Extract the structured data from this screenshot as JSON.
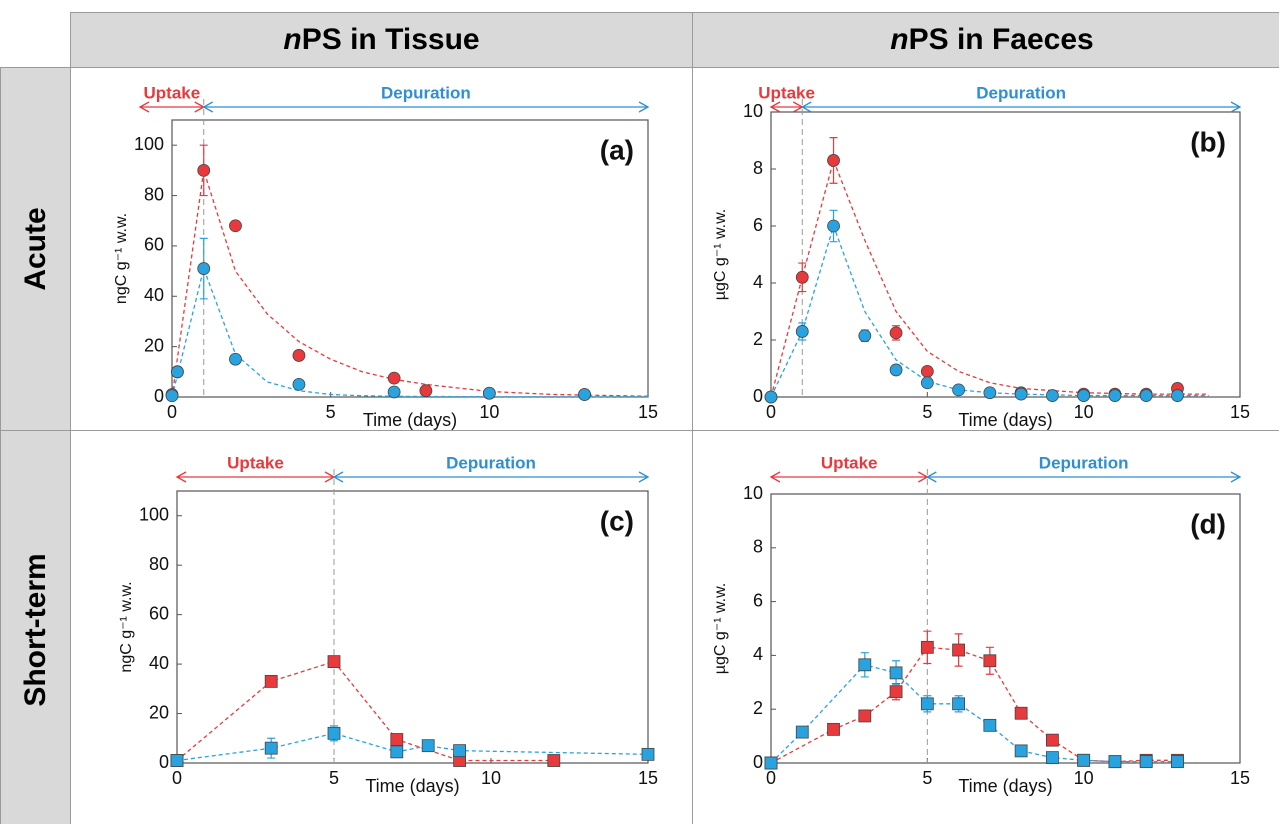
{
  "columns": [
    "nPS in Tissue",
    "nPS in Faeces"
  ],
  "rows": [
    "Acute",
    "Short-term"
  ],
  "chart_data": [
    {
      "type": "scatter",
      "label": "(a)",
      "xlabel": "Time (days)",
      "ylabel": "ngC g⁻¹ w.w.",
      "xlim": [
        0,
        15
      ],
      "ylim": [
        0,
        110
      ],
      "xticks": [
        0,
        5,
        10,
        15
      ],
      "yticks": [
        0,
        20,
        40,
        60,
        80,
        100
      ],
      "split": 1,
      "phase_labels": [
        "Uptake",
        "Depuration"
      ],
      "phase_colors": [
        "#e8393d",
        "#2f8fd0"
      ],
      "series": [
        {
          "color": "#e8393d",
          "marker": "none",
          "line": "dashed",
          "x": [
            0,
            1,
            2,
            3,
            4,
            5,
            6,
            7,
            8,
            10,
            12,
            15
          ],
          "values": [
            0,
            90,
            50,
            33,
            22,
            15,
            10,
            7,
            5,
            2.2,
            1,
            0.3
          ]
        },
        {
          "color": "#29a3df",
          "marker": "none",
          "line": "dashed",
          "x": [
            0,
            1,
            2,
            3,
            4,
            5,
            6,
            7,
            8,
            10,
            12,
            15
          ],
          "values": [
            0,
            51,
            17,
            6,
            2.5,
            1,
            0.5,
            0.3,
            0.2,
            0.1,
            0.1,
            0.1
          ]
        },
        {
          "color": "#e8393d",
          "marker": "circle",
          "line": "none",
          "x": [
            0,
            0.17,
            1,
            2,
            4,
            7,
            8,
            10,
            13
          ],
          "values": [
            1,
            10,
            90,
            68,
            16.5,
            7.5,
            2.5,
            1.5,
            1
          ],
          "errors": [
            null,
            null,
            10,
            null,
            null,
            null,
            null,
            null,
            null
          ]
        },
        {
          "color": "#29a3df",
          "marker": "circle",
          "line": "none",
          "x": [
            0,
            0.17,
            1,
            2,
            4,
            7,
            10,
            13
          ],
          "values": [
            0.5,
            10,
            51,
            15,
            5,
            2,
            1.5,
            1
          ],
          "errors": [
            null,
            null,
            12,
            null,
            null,
            null,
            null,
            null
          ]
        }
      ]
    },
    {
      "type": "scatter",
      "label": "(b)",
      "xlabel": "Time (days)",
      "ylabel": "µgC g⁻¹ w.w.",
      "xlim": [
        0,
        15
      ],
      "ylim": [
        0,
        10
      ],
      "xticks": [
        0,
        5,
        10,
        15
      ],
      "yticks": [
        0,
        2,
        4,
        6,
        8,
        10
      ],
      "split": 1,
      "phase_labels": [
        "Uptake",
        "Depuration"
      ],
      "phase_colors": [
        "#e8393d",
        "#2f8fd0"
      ],
      "series": [
        {
          "color": "#e8393d",
          "marker": "none",
          "line": "dashed",
          "x": [
            0,
            1,
            2,
            3,
            4,
            5,
            6,
            7,
            8,
            10,
            12,
            14
          ],
          "values": [
            0,
            4.2,
            8.3,
            5.5,
            3.0,
            1.6,
            0.9,
            0.5,
            0.3,
            0.15,
            0.1,
            0.1
          ]
        },
        {
          "color": "#29a3df",
          "marker": "none",
          "line": "dashed",
          "x": [
            0,
            1,
            2,
            3,
            4,
            5,
            6,
            7,
            8,
            10,
            12,
            14
          ],
          "values": [
            0,
            2.3,
            6.0,
            3.0,
            1.3,
            0.55,
            0.25,
            0.15,
            0.1,
            0.05,
            0.05,
            0.05
          ]
        },
        {
          "color": "#e8393d",
          "marker": "circle",
          "line": "none",
          "x": [
            0,
            1,
            2,
            4,
            5,
            8,
            10,
            11,
            12,
            13
          ],
          "values": [
            0,
            4.2,
            8.3,
            2.25,
            0.9,
            0.15,
            0.1,
            0.1,
            0.1,
            0.3
          ],
          "errors": [
            null,
            0.5,
            0.8,
            0.25,
            null,
            null,
            null,
            null,
            null,
            null
          ]
        },
        {
          "color": "#29a3df",
          "marker": "circle",
          "line": "none",
          "x": [
            0,
            1,
            2,
            3,
            4,
            5,
            6,
            7,
            8,
            9,
            10,
            11,
            12,
            13
          ],
          "values": [
            0,
            2.3,
            6.0,
            2.15,
            0.95,
            0.5,
            0.25,
            0.15,
            0.1,
            0.05,
            0.05,
            0.05,
            0.05,
            0.05
          ],
          "errors": [
            null,
            0.3,
            0.55,
            0.2,
            null,
            null,
            null,
            null,
            null,
            null,
            null,
            null,
            null,
            null
          ]
        }
      ]
    },
    {
      "type": "scatter",
      "label": "(c)",
      "xlabel": "Time (days)",
      "ylabel": "ngC g⁻¹ w.w.",
      "xlim": [
        0,
        15
      ],
      "ylim": [
        0,
        110
      ],
      "xticks": [
        0,
        5,
        10,
        15
      ],
      "yticks": [
        0,
        20,
        40,
        60,
        80,
        100
      ],
      "split": 5,
      "phase_labels": [
        "Uptake",
        "Depuration"
      ],
      "phase_colors": [
        "#e8393d",
        "#2f8fd0"
      ],
      "series": [
        {
          "color": "#e8393d",
          "marker": "square",
          "line": "dashed",
          "x": [
            0,
            3,
            5,
            7,
            9,
            12
          ],
          "values": [
            1,
            33,
            41,
            9.5,
            1,
            1
          ],
          "errors": [
            null,
            null,
            null,
            null,
            null,
            null
          ]
        },
        {
          "color": "#29a3df",
          "marker": "square",
          "line": "dashed",
          "x": [
            0,
            3,
            5,
            7,
            8,
            9,
            15
          ],
          "values": [
            1,
            6,
            12,
            4.5,
            7,
            5,
            3.5
          ],
          "errors": [
            null,
            4,
            3,
            null,
            null,
            null,
            null
          ]
        }
      ]
    },
    {
      "type": "scatter",
      "label": "(d)",
      "xlabel": "Time (days)",
      "ylabel": "µgC g⁻¹ w.w.",
      "xlim": [
        0,
        15
      ],
      "ylim": [
        0,
        10
      ],
      "xticks": [
        0,
        5,
        10,
        15
      ],
      "yticks": [
        0,
        2,
        4,
        6,
        8,
        10
      ],
      "split": 5,
      "phase_labels": [
        "Uptake",
        "Depuration"
      ],
      "phase_colors": [
        "#e8393d",
        "#2f8fd0"
      ],
      "series": [
        {
          "color": "#e8393d",
          "marker": "square",
          "line": "dashed",
          "x": [
            0,
            2,
            3,
            4,
            5,
            6,
            7,
            8,
            9,
            10,
            11,
            12,
            13
          ],
          "values": [
            0,
            1.25,
            1.75,
            2.65,
            4.3,
            4.2,
            3.8,
            1.85,
            0.85,
            0.1,
            0.05,
            0.1,
            0.1
          ],
          "errors": [
            null,
            null,
            0.2,
            0.3,
            0.6,
            0.6,
            0.5,
            0.2,
            null,
            null,
            null,
            null,
            null
          ]
        },
        {
          "color": "#29a3df",
          "marker": "square",
          "line": "dashed",
          "x": [
            0,
            1,
            3,
            4,
            5,
            6,
            7,
            8,
            9,
            10,
            11,
            12,
            13
          ],
          "values": [
            0,
            1.15,
            3.65,
            3.35,
            2.2,
            2.2,
            1.4,
            0.45,
            0.2,
            0.1,
            0.05,
            0.05,
            0.05
          ],
          "errors": [
            null,
            null,
            0.45,
            0.45,
            0.3,
            0.3,
            null,
            null,
            null,
            null,
            null,
            null,
            null
          ]
        }
      ]
    }
  ]
}
